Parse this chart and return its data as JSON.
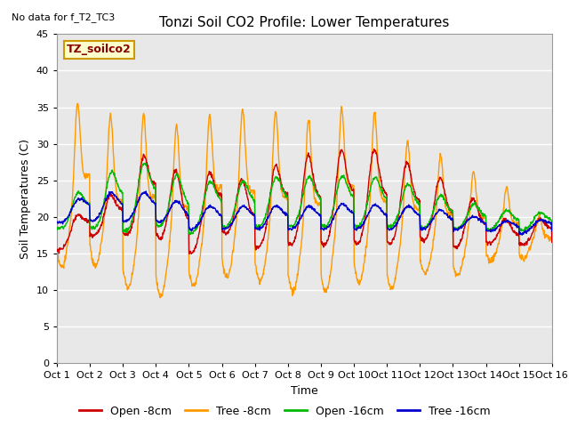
{
  "title": "Tonzi Soil CO2 Profile: Lower Temperatures",
  "subtitle": "No data for f_T2_TC3",
  "xlabel": "Time",
  "ylabel": "Soil Temperatures (C)",
  "ylim": [
    0,
    45
  ],
  "yticks": [
    0,
    5,
    10,
    15,
    20,
    25,
    30,
    35,
    40,
    45
  ],
  "xtick_labels": [
    "Oct 1",
    "Oct 2",
    "Oct 3",
    "Oct 4",
    "Oct 5",
    "Oct 6",
    "Oct 7",
    "Oct 8",
    "Oct 9",
    "Oct 10",
    "Oct 11",
    "Oct 12",
    "Oct 13",
    "Oct 14",
    "Oct 15",
    "Oct 16"
  ],
  "legend_label": "TZ_soilco2",
  "legend_box_facecolor": "#ffffcc",
  "legend_box_edgecolor": "#cc9900",
  "series_labels": [
    "Open -8cm",
    "Tree -8cm",
    "Open -16cm",
    "Tree -16cm"
  ],
  "series_colors": [
    "#cc0000",
    "#ff9900",
    "#00bb00",
    "#0000cc"
  ],
  "plot_bg_color": "#e8e8e8",
  "title_fontsize": 11,
  "axis_fontsize": 9,
  "tick_fontsize": 8
}
